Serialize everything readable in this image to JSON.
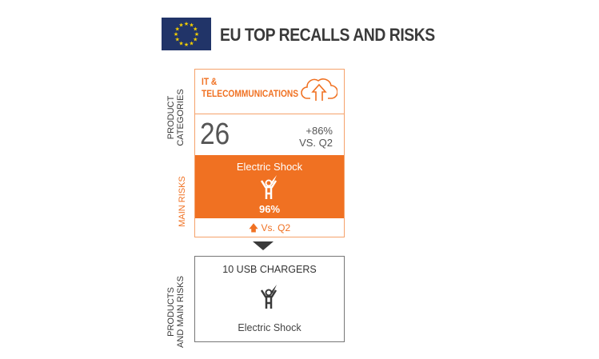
{
  "header": {
    "title": "EU TOP RECALLS AND RISKS",
    "flag_icon": "eu-flag-icon"
  },
  "side_labels": {
    "product_categories_1": "PRODUCT",
    "product_categories_2": "CATEGORIES",
    "main_risks": "MAIN RISKS",
    "products_1": "PRODUCTS",
    "products_2": "AND MAIN RISKS"
  },
  "category": {
    "name_1": "IT &",
    "name_2": "TELECOMMUNICATIONS",
    "icon": "cloud-upload-icon",
    "count": "26",
    "change": "+86%",
    "change_vs": "VS. Q2"
  },
  "risk": {
    "name": "Electric Shock",
    "icon": "electric-shock-icon",
    "percent": "96%",
    "vs": "Vs. Q2",
    "trend_icon": "arrow-up-icon"
  },
  "products": {
    "label": "10 USB CHARGERS",
    "risk": "Electric Shock",
    "icon": "electric-shock-icon"
  },
  "colors": {
    "accent": "#f07122",
    "flag": "#213468",
    "star": "#f5d000",
    "text": "#3a3a3a"
  }
}
